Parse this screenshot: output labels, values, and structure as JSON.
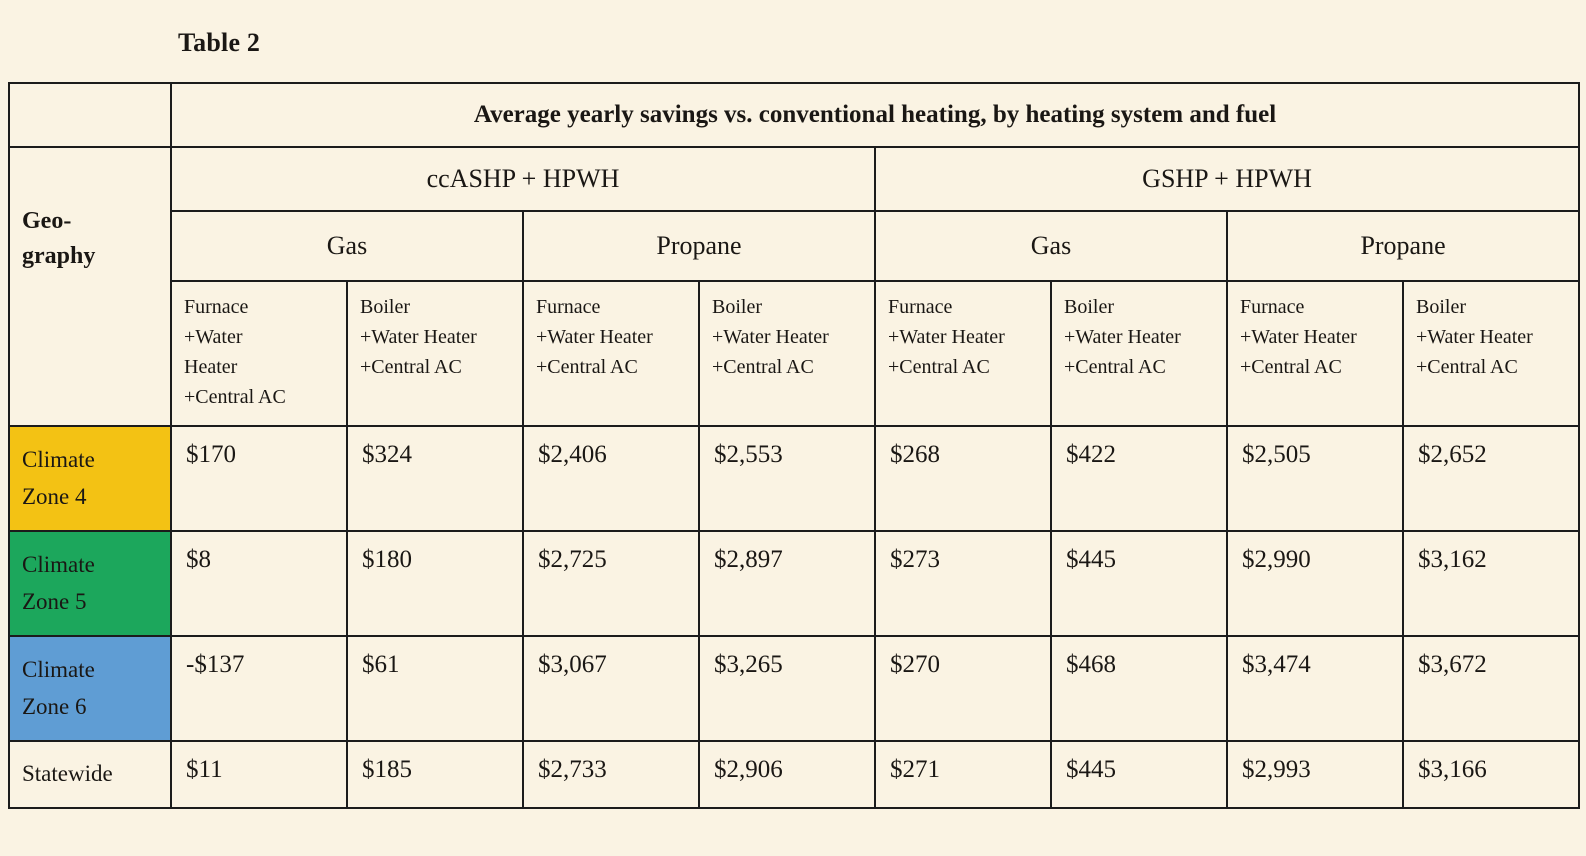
{
  "page": {
    "background": "#FAF3E3",
    "text_color": "#1A1714",
    "border_color": "#1B1B1B"
  },
  "table": {
    "caption": "Table 2",
    "main_header": "Average yearly savings vs. conventional heating, by heating system and fuel",
    "geography_label": "Geo-\ngraphy",
    "system_groups": [
      "ccASHP + HPWH",
      "GSHP + HPWH"
    ],
    "fuel_groups": [
      "Gas",
      "Propane",
      "Gas",
      "Propane"
    ],
    "config_headers": [
      "Furnace\n+Water\nHeater\n+Central AC",
      "Boiler\n+Water Heater\n+Central AC",
      "Furnace\n+Water Heater\n+Central AC",
      "Boiler\n+Water Heater\n+Central AC",
      "Furnace\n+Water Heater\n+Central AC",
      "Boiler\n+Water Heater\n+Central AC",
      "Furnace\n+Water Heater\n+Central AC",
      "Boiler\n+Water Heater\n+Central AC"
    ],
    "rows": [
      {
        "label": "Climate\nZone 4",
        "color": "#F3C214",
        "values": [
          "$170",
          "$324",
          "$2,406",
          "$2,553",
          "$268",
          "$422",
          "$2,505",
          "$2,652"
        ]
      },
      {
        "label": "Climate\nZone 5",
        "color": "#1CA75C",
        "values": [
          "$8",
          "$180",
          "$2,725",
          "$2,897",
          "$273",
          "$445",
          "$2,990",
          "$3,162"
        ]
      },
      {
        "label": "Climate\nZone 6",
        "color": "#5F9DD4",
        "values": [
          "-$137",
          "$61",
          "$3,067",
          "$3,265",
          "$270",
          "$468",
          "$3,474",
          "$3,672"
        ]
      },
      {
        "label": "Statewide",
        "color": "",
        "values": [
          "$11",
          "$185",
          "$2,733",
          "$2,906",
          "$271",
          "$445",
          "$2,993",
          "$3,166"
        ]
      }
    ]
  },
  "chart_data": {
    "type": "table",
    "title": "Average yearly savings vs. conventional heating, by heating system and fuel",
    "row_labels": [
      "Climate Zone 4",
      "Climate Zone 5",
      "Climate Zone 6",
      "Statewide"
    ],
    "column_labels": [
      "ccASHP + HPWH | Gas | Furnace +Water Heater +Central AC",
      "ccASHP + HPWH | Gas | Boiler +Water Heater +Central AC",
      "ccASHP + HPWH | Propane | Furnace +Water Heater +Central AC",
      "ccASHP + HPWH | Propane | Boiler +Water Heater +Central AC",
      "GSHP + HPWH | Gas | Furnace +Water Heater +Central AC",
      "GSHP + HPWH | Gas | Boiler +Water Heater +Central AC",
      "GSHP + HPWH | Propane | Furnace +Water Heater +Central AC",
      "GSHP + HPWH | Propane | Boiler +Water Heater +Central AC"
    ],
    "values_usd": [
      [
        170,
        324,
        2406,
        2553,
        268,
        422,
        2505,
        2652
      ],
      [
        8,
        180,
        2725,
        2897,
        273,
        445,
        2990,
        3162
      ],
      [
        -137,
        61,
        3067,
        3265,
        270,
        468,
        3474,
        3672
      ],
      [
        11,
        185,
        2733,
        2906,
        271,
        445,
        2993,
        3166
      ]
    ]
  }
}
